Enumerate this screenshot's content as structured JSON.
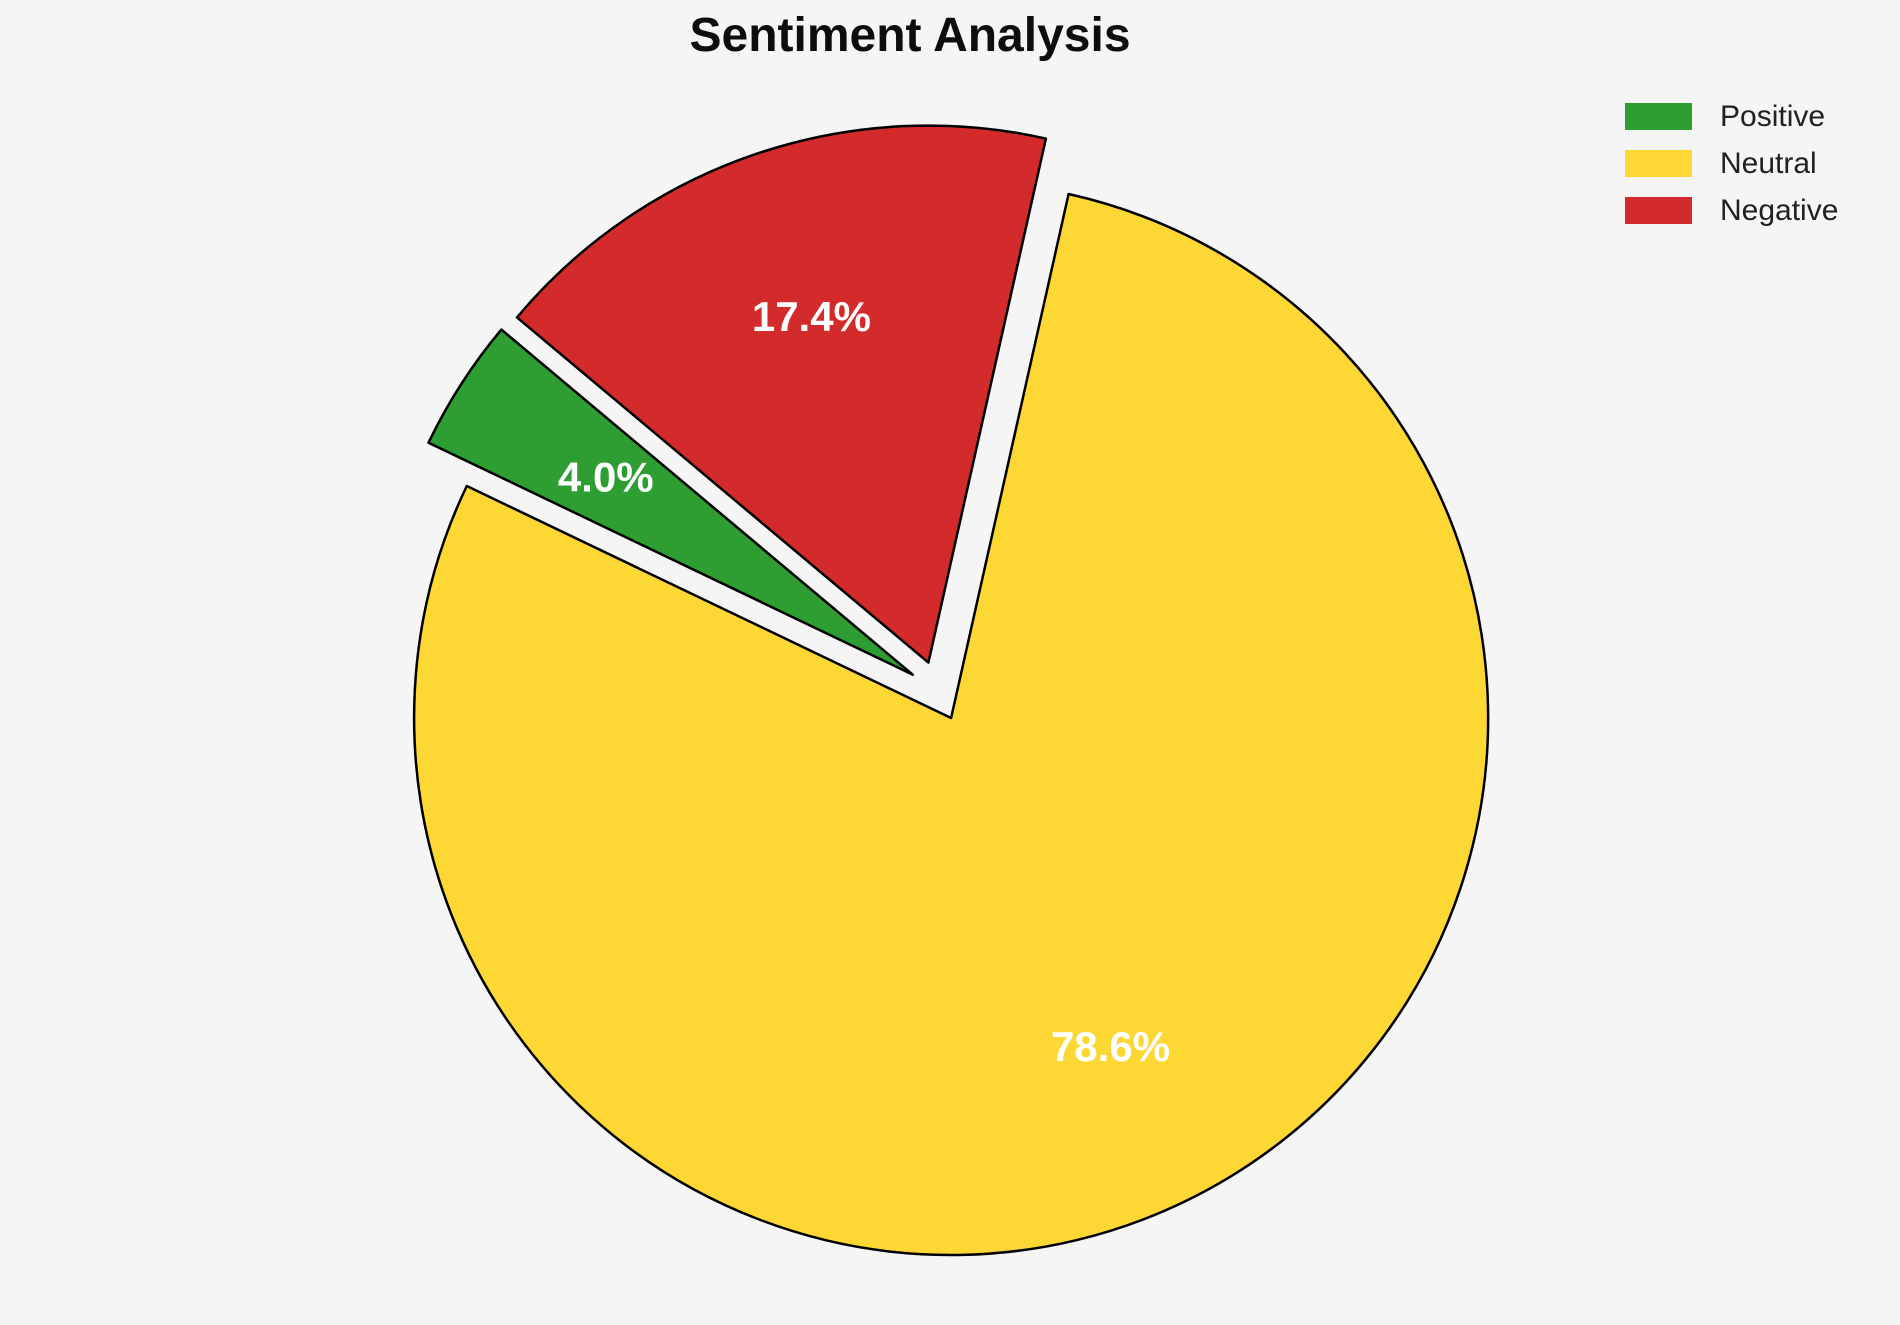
{
  "chart_data": {
    "type": "pie",
    "title": "Sentiment Analysis",
    "slices": [
      {
        "label": "Positive",
        "value": 4.0,
        "pct_label": "4.0%",
        "color": "#2e9e32"
      },
      {
        "label": "Neutral",
        "value": 78.6,
        "pct_label": "78.6%",
        "color": "#fdd733"
      },
      {
        "label": "Negative",
        "value": 17.4,
        "pct_label": "17.4%",
        "color": "#d32b2b"
      }
    ],
    "start_angle_deg": 140,
    "direction": "counterclockwise",
    "exploded": true,
    "legend_position": "upper-right",
    "pct_label_color": "#ffffff",
    "edge_color": "#000000",
    "background_color": "#f5f5f5",
    "title_color": "#0d0d0d",
    "legend_text_color": "#212121"
  }
}
